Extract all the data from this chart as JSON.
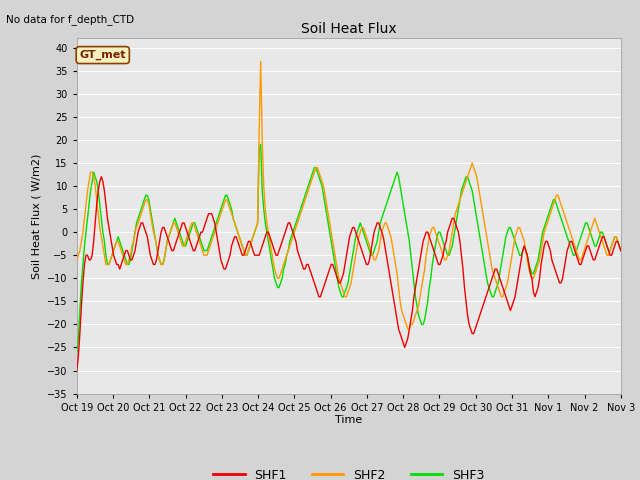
{
  "title": "Soil Heat Flux",
  "top_left_text": "No data for f_depth_CTD",
  "ylabel": "Soil Heat Flux ( W/m2)",
  "xlabel": "Time",
  "annotation_box": "GT_met",
  "ylim": [
    -35,
    42
  ],
  "yticks": [
    -35,
    -30,
    -25,
    -20,
    -15,
    -10,
    -5,
    0,
    5,
    10,
    15,
    20,
    25,
    30,
    35,
    40
  ],
  "xlabels": [
    "Oct 19",
    "Oct 20",
    "Oct 21",
    "Oct 22",
    "Oct 23",
    "Oct 24",
    "Oct 25",
    "Oct 26",
    "Oct 27",
    "Oct 28",
    "Oct 29",
    "Oct 30",
    "Oct 31",
    "Nov 1",
    "Nov 2",
    "Nov 3"
  ],
  "fig_bg_color": "#d4d4d4",
  "plot_bg_color": "#e8e8e8",
  "grid_color": "#ffffff",
  "line_colors": {
    "SHF1": "#ee0000",
    "SHF2": "#ff9900",
    "SHF3": "#00dd00"
  },
  "line_width": 1.0,
  "shf1": [
    -30,
    -27,
    -22,
    -16,
    -11,
    -7,
    -5,
    -5,
    -6,
    -6,
    -5,
    -2,
    2,
    6,
    9,
    11,
    12,
    11,
    9,
    6,
    3,
    1,
    -1,
    -3,
    -5,
    -6,
    -7,
    -7,
    -8,
    -7,
    -6,
    -5,
    -4,
    -4,
    -5,
    -6,
    -6,
    -5,
    -4,
    -2,
    0,
    1,
    2,
    2,
    1,
    0,
    -1,
    -3,
    -5,
    -6,
    -7,
    -7,
    -6,
    -4,
    -2,
    0,
    1,
    1,
    0,
    -1,
    -2,
    -3,
    -4,
    -4,
    -3,
    -2,
    -1,
    0,
    1,
    2,
    2,
    1,
    0,
    -1,
    -2,
    -3,
    -4,
    -4,
    -3,
    -2,
    -1,
    0,
    0,
    1,
    2,
    3,
    4,
    4,
    4,
    3,
    2,
    0,
    -2,
    -4,
    -6,
    -7,
    -8,
    -8,
    -7,
    -6,
    -5,
    -3,
    -2,
    -1,
    -1,
    -2,
    -3,
    -4,
    -5,
    -5,
    -4,
    -3,
    -2,
    -2,
    -3,
    -4,
    -5,
    -5,
    -5,
    -5,
    -4,
    -3,
    -2,
    -1,
    0,
    0,
    -1,
    -2,
    -3,
    -4,
    -5,
    -5,
    -4,
    -3,
    -2,
    -1,
    0,
    1,
    2,
    2,
    1,
    0,
    -1,
    -2,
    -4,
    -5,
    -6,
    -7,
    -8,
    -8,
    -7,
    -7,
    -8,
    -9,
    -10,
    -11,
    -12,
    -13,
    -14,
    -14,
    -13,
    -12,
    -11,
    -10,
    -9,
    -8,
    -7,
    -7,
    -8,
    -9,
    -10,
    -11,
    -11,
    -10,
    -9,
    -7,
    -5,
    -3,
    -1,
    0,
    1,
    1,
    0,
    -1,
    -2,
    -3,
    -4,
    -5,
    -6,
    -7,
    -7,
    -6,
    -4,
    -2,
    0,
    1,
    2,
    2,
    1,
    0,
    -1,
    -3,
    -5,
    -7,
    -9,
    -11,
    -13,
    -15,
    -17,
    -19,
    -21,
    -22,
    -23,
    -24,
    -25,
    -24,
    -23,
    -21,
    -19,
    -17,
    -14,
    -12,
    -10,
    -8,
    -6,
    -4,
    -2,
    -1,
    0,
    0,
    -1,
    -2,
    -3,
    -4,
    -5,
    -6,
    -7,
    -7,
    -6,
    -5,
    -3,
    -2,
    0,
    1,
    2,
    3,
    3,
    2,
    1,
    0,
    -2,
    -5,
    -8,
    -12,
    -15,
    -18,
    -20,
    -21,
    -22,
    -22,
    -21,
    -20,
    -19,
    -18,
    -17,
    -16,
    -15,
    -14,
    -13,
    -12,
    -11,
    -10,
    -9,
    -8,
    -8,
    -9,
    -10,
    -11,
    -12,
    -13,
    -14,
    -15,
    -16,
    -17,
    -16,
    -15,
    -14,
    -12,
    -10,
    -8,
    -6,
    -4,
    -3,
    -4,
    -5,
    -7,
    -9,
    -10,
    -13,
    -14,
    -13,
    -12,
    -10,
    -7,
    -5,
    -3,
    -2,
    -2,
    -3,
    -4,
    -6,
    -7,
    -8,
    -9,
    -10,
    -11,
    -11,
    -10,
    -8,
    -6,
    -4,
    -3,
    -2,
    -2,
    -3,
    -4,
    -5,
    -6,
    -7,
    -7,
    -6,
    -5,
    -4,
    -3,
    -3,
    -4,
    -5,
    -6,
    -6,
    -5,
    -4,
    -3,
    -2,
    -1,
    -1,
    -2,
    -3,
    -4,
    -5,
    -5,
    -4,
    -3,
    -2,
    -2,
    -3,
    -4
  ],
  "shf2": [
    -6,
    -5,
    -4,
    -2,
    0,
    3,
    6,
    9,
    11,
    13,
    13,
    12,
    10,
    7,
    4,
    1,
    -1,
    -3,
    -5,
    -7,
    -7,
    -7,
    -6,
    -5,
    -4,
    -3,
    -2,
    -2,
    -3,
    -4,
    -5,
    -6,
    -7,
    -7,
    -6,
    -5,
    -3,
    -2,
    0,
    1,
    2,
    3,
    4,
    5,
    6,
    7,
    7,
    6,
    4,
    2,
    0,
    -1,
    -3,
    -5,
    -6,
    -7,
    -7,
    -6,
    -4,
    -2,
    -1,
    0,
    1,
    2,
    2,
    1,
    0,
    -1,
    -2,
    -3,
    -3,
    -2,
    -1,
    0,
    1,
    2,
    2,
    1,
    0,
    -1,
    -2,
    -3,
    -4,
    -5,
    -5,
    -5,
    -4,
    -3,
    -2,
    -1,
    0,
    1,
    2,
    3,
    4,
    5,
    6,
    7,
    7,
    6,
    5,
    4,
    3,
    2,
    1,
    0,
    -1,
    -2,
    -3,
    -4,
    -5,
    -5,
    -4,
    -3,
    -2,
    -1,
    0,
    1,
    2,
    22,
    37,
    20,
    10,
    5,
    2,
    0,
    -2,
    -4,
    -6,
    -8,
    -9,
    -10,
    -10,
    -9,
    -8,
    -7,
    -6,
    -5,
    -4,
    -3,
    -2,
    -1,
    0,
    1,
    2,
    3,
    4,
    5,
    6,
    7,
    8,
    9,
    10,
    11,
    12,
    13,
    14,
    14,
    13,
    12,
    11,
    10,
    8,
    6,
    4,
    2,
    0,
    -2,
    -4,
    -6,
    -8,
    -10,
    -11,
    -12,
    -13,
    -14,
    -14,
    -13,
    -12,
    -11,
    -9,
    -7,
    -5,
    -3,
    -1,
    0,
    1,
    1,
    0,
    -1,
    -2,
    -3,
    -4,
    -5,
    -6,
    -6,
    -5,
    -4,
    -2,
    0,
    1,
    2,
    2,
    1,
    0,
    -1,
    -3,
    -5,
    -7,
    -9,
    -12,
    -15,
    -17,
    -18,
    -19,
    -20,
    -21,
    -21,
    -20,
    -20,
    -19,
    -18,
    -17,
    -16,
    -14,
    -12,
    -10,
    -8,
    -5,
    -3,
    -1,
    0,
    1,
    1,
    0,
    -1,
    -2,
    -3,
    -4,
    -5,
    -6,
    -6,
    -5,
    -4,
    -2,
    0,
    2,
    4,
    5,
    6,
    7,
    8,
    9,
    10,
    11,
    12,
    13,
    14,
    15,
    14,
    13,
    12,
    10,
    8,
    6,
    4,
    2,
    0,
    -2,
    -4,
    -6,
    -8,
    -9,
    -10,
    -11,
    -12,
    -13,
    -14,
    -14,
    -13,
    -12,
    -11,
    -9,
    -7,
    -5,
    -3,
    -1,
    0,
    1,
    1,
    0,
    -1,
    -2,
    -4,
    -6,
    -8,
    -9,
    -10,
    -10,
    -9,
    -8,
    -7,
    -6,
    -4,
    -2,
    0,
    1,
    2,
    3,
    4,
    5,
    6,
    7,
    8,
    8,
    7,
    6,
    5,
    4,
    3,
    2,
    1,
    0,
    -1,
    -2,
    -3,
    -4,
    -5,
    -6,
    -6,
    -5,
    -4,
    -3,
    -2,
    -1,
    0,
    1,
    2,
    3,
    2,
    1,
    0,
    -1,
    -2,
    -3,
    -4,
    -5,
    -5,
    -4,
    -3,
    -2,
    -1,
    -1,
    -2,
    -3,
    -4
  ],
  "shf3": [
    -26,
    -23,
    -17,
    -11,
    -7,
    -3,
    0,
    3,
    6,
    9,
    11,
    13,
    12,
    11,
    9,
    6,
    3,
    0,
    -2,
    -5,
    -7,
    -7,
    -6,
    -5,
    -4,
    -3,
    -2,
    -1,
    -2,
    -3,
    -4,
    -5,
    -6,
    -7,
    -7,
    -6,
    -4,
    -2,
    0,
    2,
    3,
    4,
    5,
    6,
    7,
    8,
    8,
    7,
    5,
    3,
    1,
    -1,
    -3,
    -5,
    -6,
    -7,
    -7,
    -6,
    -4,
    -2,
    -1,
    0,
    1,
    2,
    3,
    2,
    1,
    0,
    -1,
    -2,
    -3,
    -3,
    -2,
    -1,
    0,
    1,
    2,
    2,
    1,
    0,
    -1,
    -2,
    -3,
    -4,
    -4,
    -4,
    -3,
    -2,
    -1,
    0,
    1,
    2,
    3,
    4,
    5,
    6,
    7,
    8,
    8,
    7,
    6,
    5,
    3,
    2,
    1,
    0,
    -1,
    -2,
    -3,
    -4,
    -5,
    -5,
    -4,
    -3,
    -2,
    -1,
    0,
    1,
    2,
    18,
    19,
    9,
    5,
    2,
    0,
    -2,
    -4,
    -6,
    -8,
    -10,
    -11,
    -12,
    -12,
    -11,
    -10,
    -8,
    -7,
    -5,
    -4,
    -2,
    -1,
    0,
    1,
    2,
    3,
    4,
    5,
    6,
    7,
    8,
    9,
    10,
    11,
    12,
    13,
    14,
    14,
    13,
    12,
    11,
    10,
    8,
    6,
    4,
    2,
    0,
    -2,
    -4,
    -6,
    -8,
    -10,
    -12,
    -13,
    -14,
    -14,
    -13,
    -12,
    -11,
    -9,
    -7,
    -5,
    -3,
    -1,
    0,
    1,
    2,
    1,
    0,
    -1,
    -2,
    -3,
    -4,
    -5,
    -5,
    -4,
    -3,
    -2,
    0,
    2,
    3,
    4,
    5,
    6,
    7,
    8,
    9,
    10,
    11,
    12,
    13,
    12,
    10,
    8,
    6,
    4,
    2,
    0,
    -2,
    -5,
    -8,
    -11,
    -14,
    -16,
    -18,
    -19,
    -20,
    -20,
    -19,
    -17,
    -15,
    -12,
    -10,
    -7,
    -5,
    -3,
    -1,
    0,
    0,
    -1,
    -2,
    -3,
    -4,
    -5,
    -5,
    -4,
    -3,
    -1,
    1,
    3,
    5,
    7,
    9,
    10,
    11,
    12,
    12,
    11,
    10,
    9,
    7,
    5,
    3,
    1,
    -1,
    -3,
    -5,
    -7,
    -9,
    -11,
    -12,
    -13,
    -14,
    -14,
    -13,
    -12,
    -11,
    -9,
    -7,
    -5,
    -3,
    -1,
    0,
    1,
    1,
    0,
    -1,
    -2,
    -3,
    -4,
    -5,
    -5,
    -4,
    -3,
    -4,
    -5,
    -7,
    -8,
    -9,
    -9,
    -8,
    -7,
    -6,
    -4,
    -2,
    0,
    1,
    2,
    3,
    4,
    5,
    6,
    7,
    7,
    6,
    5,
    4,
    3,
    2,
    1,
    0,
    -1,
    -2,
    -3,
    -4,
    -5,
    -5,
    -4,
    -3,
    -2,
    -1,
    0,
    1,
    2,
    2,
    1,
    0,
    -1,
    -2,
    -3,
    -3,
    -2,
    -1,
    0,
    0,
    -1,
    -2,
    -3,
    -4,
    -4,
    -3,
    -2,
    -1,
    -1,
    -2,
    -3,
    -4
  ]
}
